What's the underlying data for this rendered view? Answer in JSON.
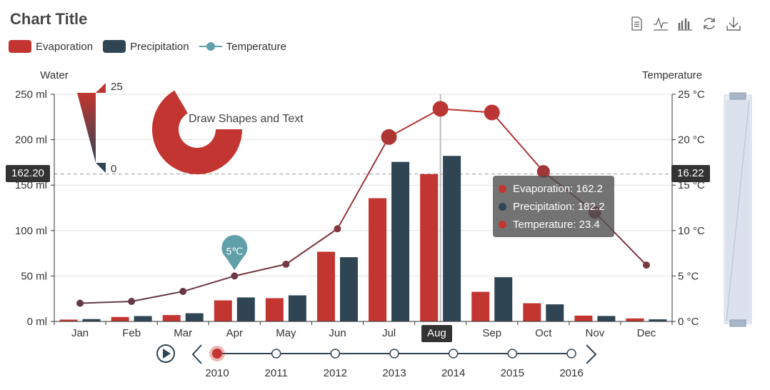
{
  "title": "Chart Title",
  "legend": [
    {
      "name": "Evaporation",
      "color": "#c23531",
      "kind": "box"
    },
    {
      "name": "Precipitation",
      "color": "#2f4554",
      "kind": "box"
    },
    {
      "name": "Temperature",
      "color": "#61a0a8",
      "kind": "line"
    }
  ],
  "toolbox": [
    "data-view-icon",
    "line-chart-icon",
    "bar-chart-icon",
    "restore-icon",
    "download-icon"
  ],
  "graphic_text": "Draw Shapes and Text",
  "visual_map": {
    "max_label": "25",
    "min_label": "0"
  },
  "tooltip": {
    "items": [
      {
        "label": "Evaporation: 162.2",
        "color": "#c23531"
      },
      {
        "label": "Precipitation: 182.2",
        "color": "#2f4554"
      },
      {
        "label": "Temperature: 23.4",
        "color": "#c23531"
      }
    ]
  },
  "axis_pointer": {
    "left_value": "162.20",
    "right_value": "16.22",
    "category": "Aug"
  },
  "mark_point": {
    "label": "5℃"
  },
  "timeline": {
    "years": [
      "2010",
      "2011",
      "2012",
      "2013",
      "2014",
      "2015",
      "2016"
    ],
    "current": "2010"
  },
  "chart_data": {
    "type": "bar",
    "title": "Chart Title",
    "categories": [
      "Jan",
      "Feb",
      "Mar",
      "Apr",
      "May",
      "Jun",
      "Jul",
      "Aug",
      "Sep",
      "Oct",
      "Nov",
      "Dec"
    ],
    "series": [
      {
        "name": "Evaporation",
        "type": "bar",
        "axis": "left",
        "values": [
          2.0,
          4.9,
          7.0,
          23.2,
          25.6,
          76.7,
          135.6,
          162.2,
          32.6,
          20.0,
          6.4,
          3.3
        ]
      },
      {
        "name": "Precipitation",
        "type": "bar",
        "axis": "left",
        "values": [
          2.6,
          5.9,
          9.0,
          26.4,
          28.7,
          70.7,
          175.6,
          182.2,
          48.7,
          18.8,
          6.0,
          2.3
        ]
      },
      {
        "name": "Temperature",
        "type": "line",
        "axis": "right",
        "values": [
          2.0,
          2.2,
          3.3,
          5.0,
          6.3,
          10.2,
          20.3,
          23.4,
          23.0,
          16.5,
          12.0,
          6.2
        ]
      }
    ],
    "ylabel_left": "Water",
    "ylabel_right": "Temperature",
    "ylim_left": [
      0,
      250
    ],
    "ylim_right": [
      0,
      25
    ],
    "left_ticks": [
      "0 ml",
      "50 ml",
      "100 ml",
      "150 ml",
      "200 ml",
      "250 ml"
    ],
    "right_ticks": [
      "0 °C",
      "5 °C",
      "10 °C",
      "15 °C",
      "20 °C",
      "25 °C"
    ],
    "highlight_category": "Aug",
    "grid": true,
    "legend_position": "top-left"
  }
}
